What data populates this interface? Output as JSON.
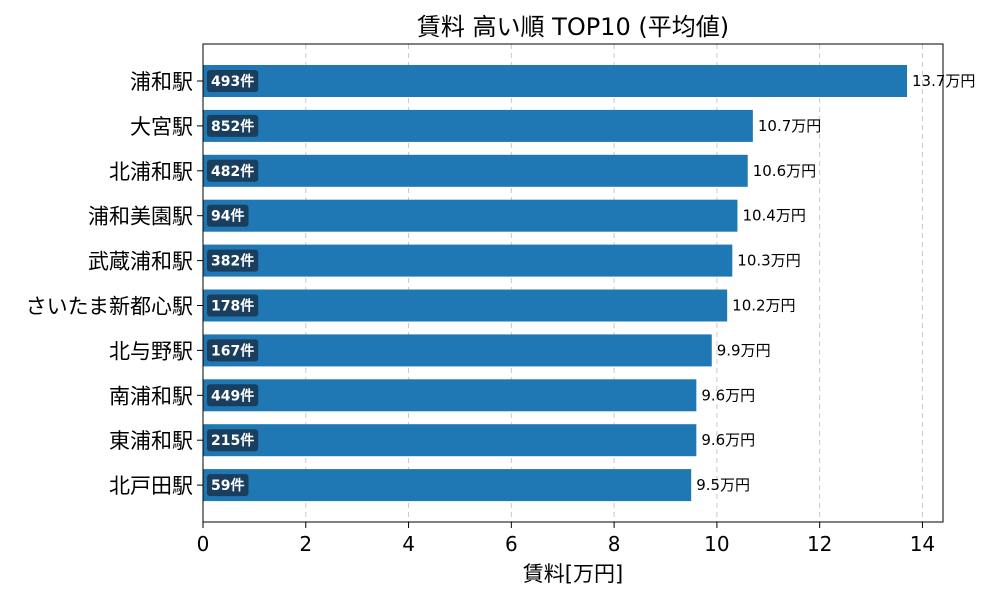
{
  "chart_data": {
    "type": "bar",
    "orientation": "horizontal",
    "title": "賃料 高い順 TOP10 (平均値)",
    "xlabel": "賃料[万円]",
    "xlim": [
      0,
      14.4
    ],
    "xticks": [
      0,
      2,
      4,
      6,
      8,
      10,
      12,
      14
    ],
    "grid": "x",
    "colors": {
      "bar": "#1f77b4",
      "count_badge": "#1a3f5e"
    },
    "categories": [
      "浦和駅",
      "大宮駅",
      "北浦和駅",
      "浦和美園駅",
      "武蔵浦和駅",
      "さいたま新都心駅",
      "北与野駅",
      "南浦和駅",
      "東浦和駅",
      "北戸田駅"
    ],
    "values": [
      13.7,
      10.7,
      10.6,
      10.4,
      10.3,
      10.2,
      9.9,
      9.6,
      9.6,
      9.5
    ],
    "value_labels": [
      "13.7万円",
      "10.7万円",
      "10.6万円",
      "10.4万円",
      "10.3万円",
      "10.2万円",
      "9.9万円",
      "9.6万円",
      "9.6万円",
      "9.5万円"
    ],
    "counts": [
      "493件",
      "852件",
      "482件",
      "94件",
      "382件",
      "178件",
      "167件",
      "449件",
      "215件",
      "59件"
    ]
  }
}
